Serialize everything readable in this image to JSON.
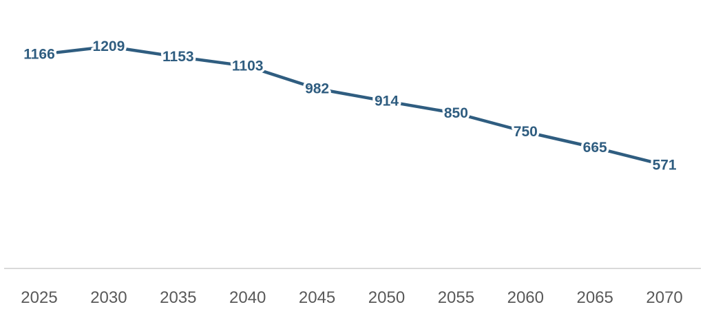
{
  "chart_data": {
    "type": "line",
    "categories": [
      "2025",
      "2030",
      "2035",
      "2040",
      "2045",
      "2050",
      "2055",
      "2060",
      "2065",
      "2070"
    ],
    "series": [
      {
        "values": [
          1166,
          1209,
          1153,
          1103,
          982,
          914,
          850,
          750,
          665,
          571
        ],
        "color": "#2f5d80"
      }
    ],
    "data_labels": true,
    "grid": false,
    "legend": "none",
    "y_axis_visible": false,
    "axis_color": "#d9d9d9",
    "tick_label_color": "#595959"
  }
}
